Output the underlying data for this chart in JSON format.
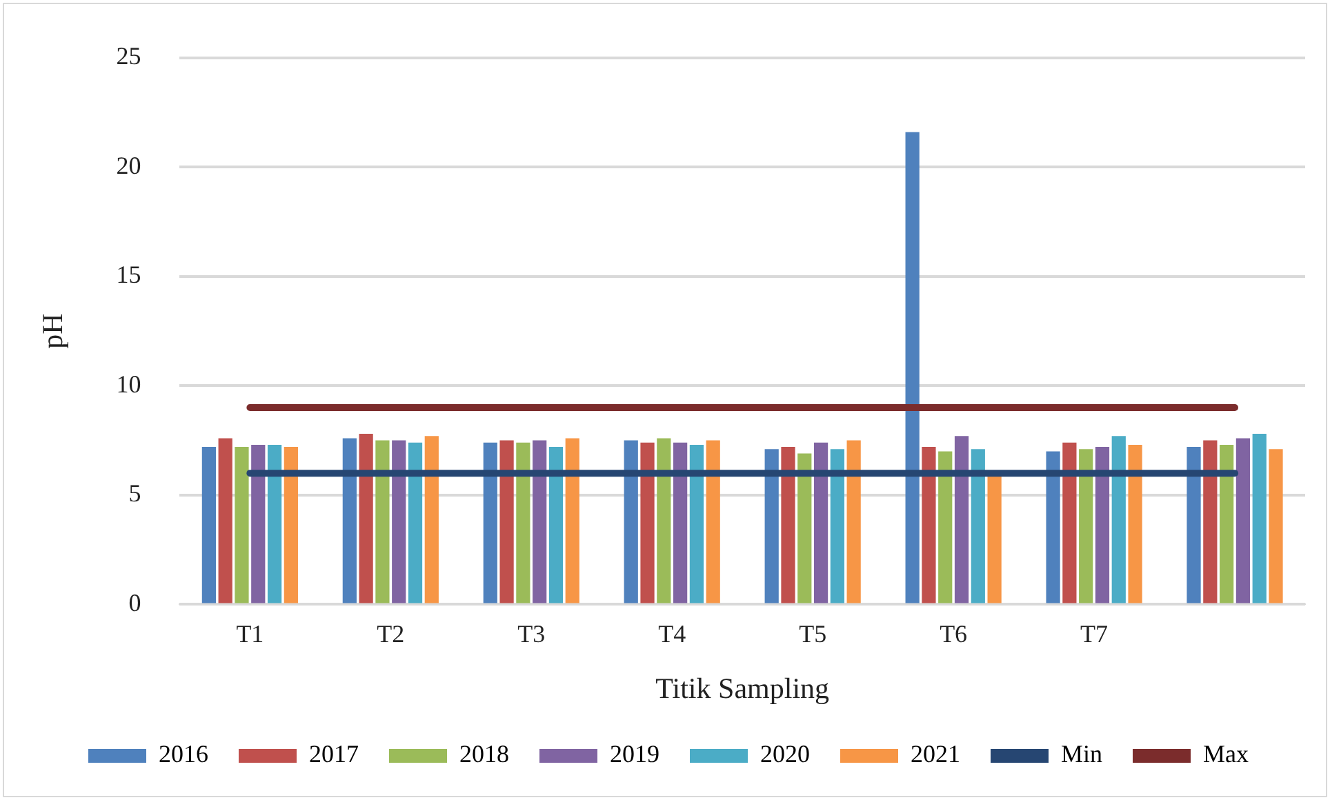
{
  "chart_data": {
    "type": "bar",
    "xlabel": "Titik Sampling",
    "ylabel": "pH",
    "categories": [
      "T1",
      "T2",
      "T3",
      "T4",
      "T5",
      "T6",
      "T7",
      null
    ],
    "series": [
      {
        "name": "2016",
        "color": "#4f81bd",
        "values": [
          7.2,
          7.6,
          7.4,
          7.5,
          7.1,
          21.6,
          7.0,
          7.2
        ]
      },
      {
        "name": "2017",
        "color": "#c0504d",
        "values": [
          7.6,
          7.8,
          7.5,
          7.4,
          7.2,
          7.2,
          7.4,
          7.5
        ]
      },
      {
        "name": "2018",
        "color": "#9bbb59",
        "values": [
          7.2,
          7.5,
          7.4,
          7.6,
          6.9,
          7.0,
          7.1,
          7.3
        ]
      },
      {
        "name": "2019",
        "color": "#8064a2",
        "values": [
          7.3,
          7.5,
          7.5,
          7.4,
          7.4,
          7.7,
          7.2,
          7.6
        ]
      },
      {
        "name": "2020",
        "color": "#4bacc6",
        "values": [
          7.3,
          7.4,
          7.2,
          7.3,
          7.1,
          7.1,
          7.7,
          7.8
        ]
      },
      {
        "name": "2021",
        "color": "#f79646",
        "values": [
          7.2,
          7.7,
          7.6,
          7.5,
          7.5,
          5.9,
          7.3,
          7.1
        ]
      },
      {
        "name": "Min",
        "type": "line",
        "color": "#264672",
        "values": [
          6,
          6,
          6,
          6,
          6,
          6,
          6,
          6
        ]
      },
      {
        "name": "Max",
        "type": "line",
        "color": "#7b2c2c",
        "values": [
          9,
          9,
          9,
          9,
          9,
          9,
          9,
          9
        ]
      }
    ],
    "ylim": [
      0,
      25
    ],
    "yticks": [
      0,
      5,
      10,
      15,
      20,
      25
    ],
    "grid": "y",
    "legend": "bottom",
    "marker": "none"
  }
}
